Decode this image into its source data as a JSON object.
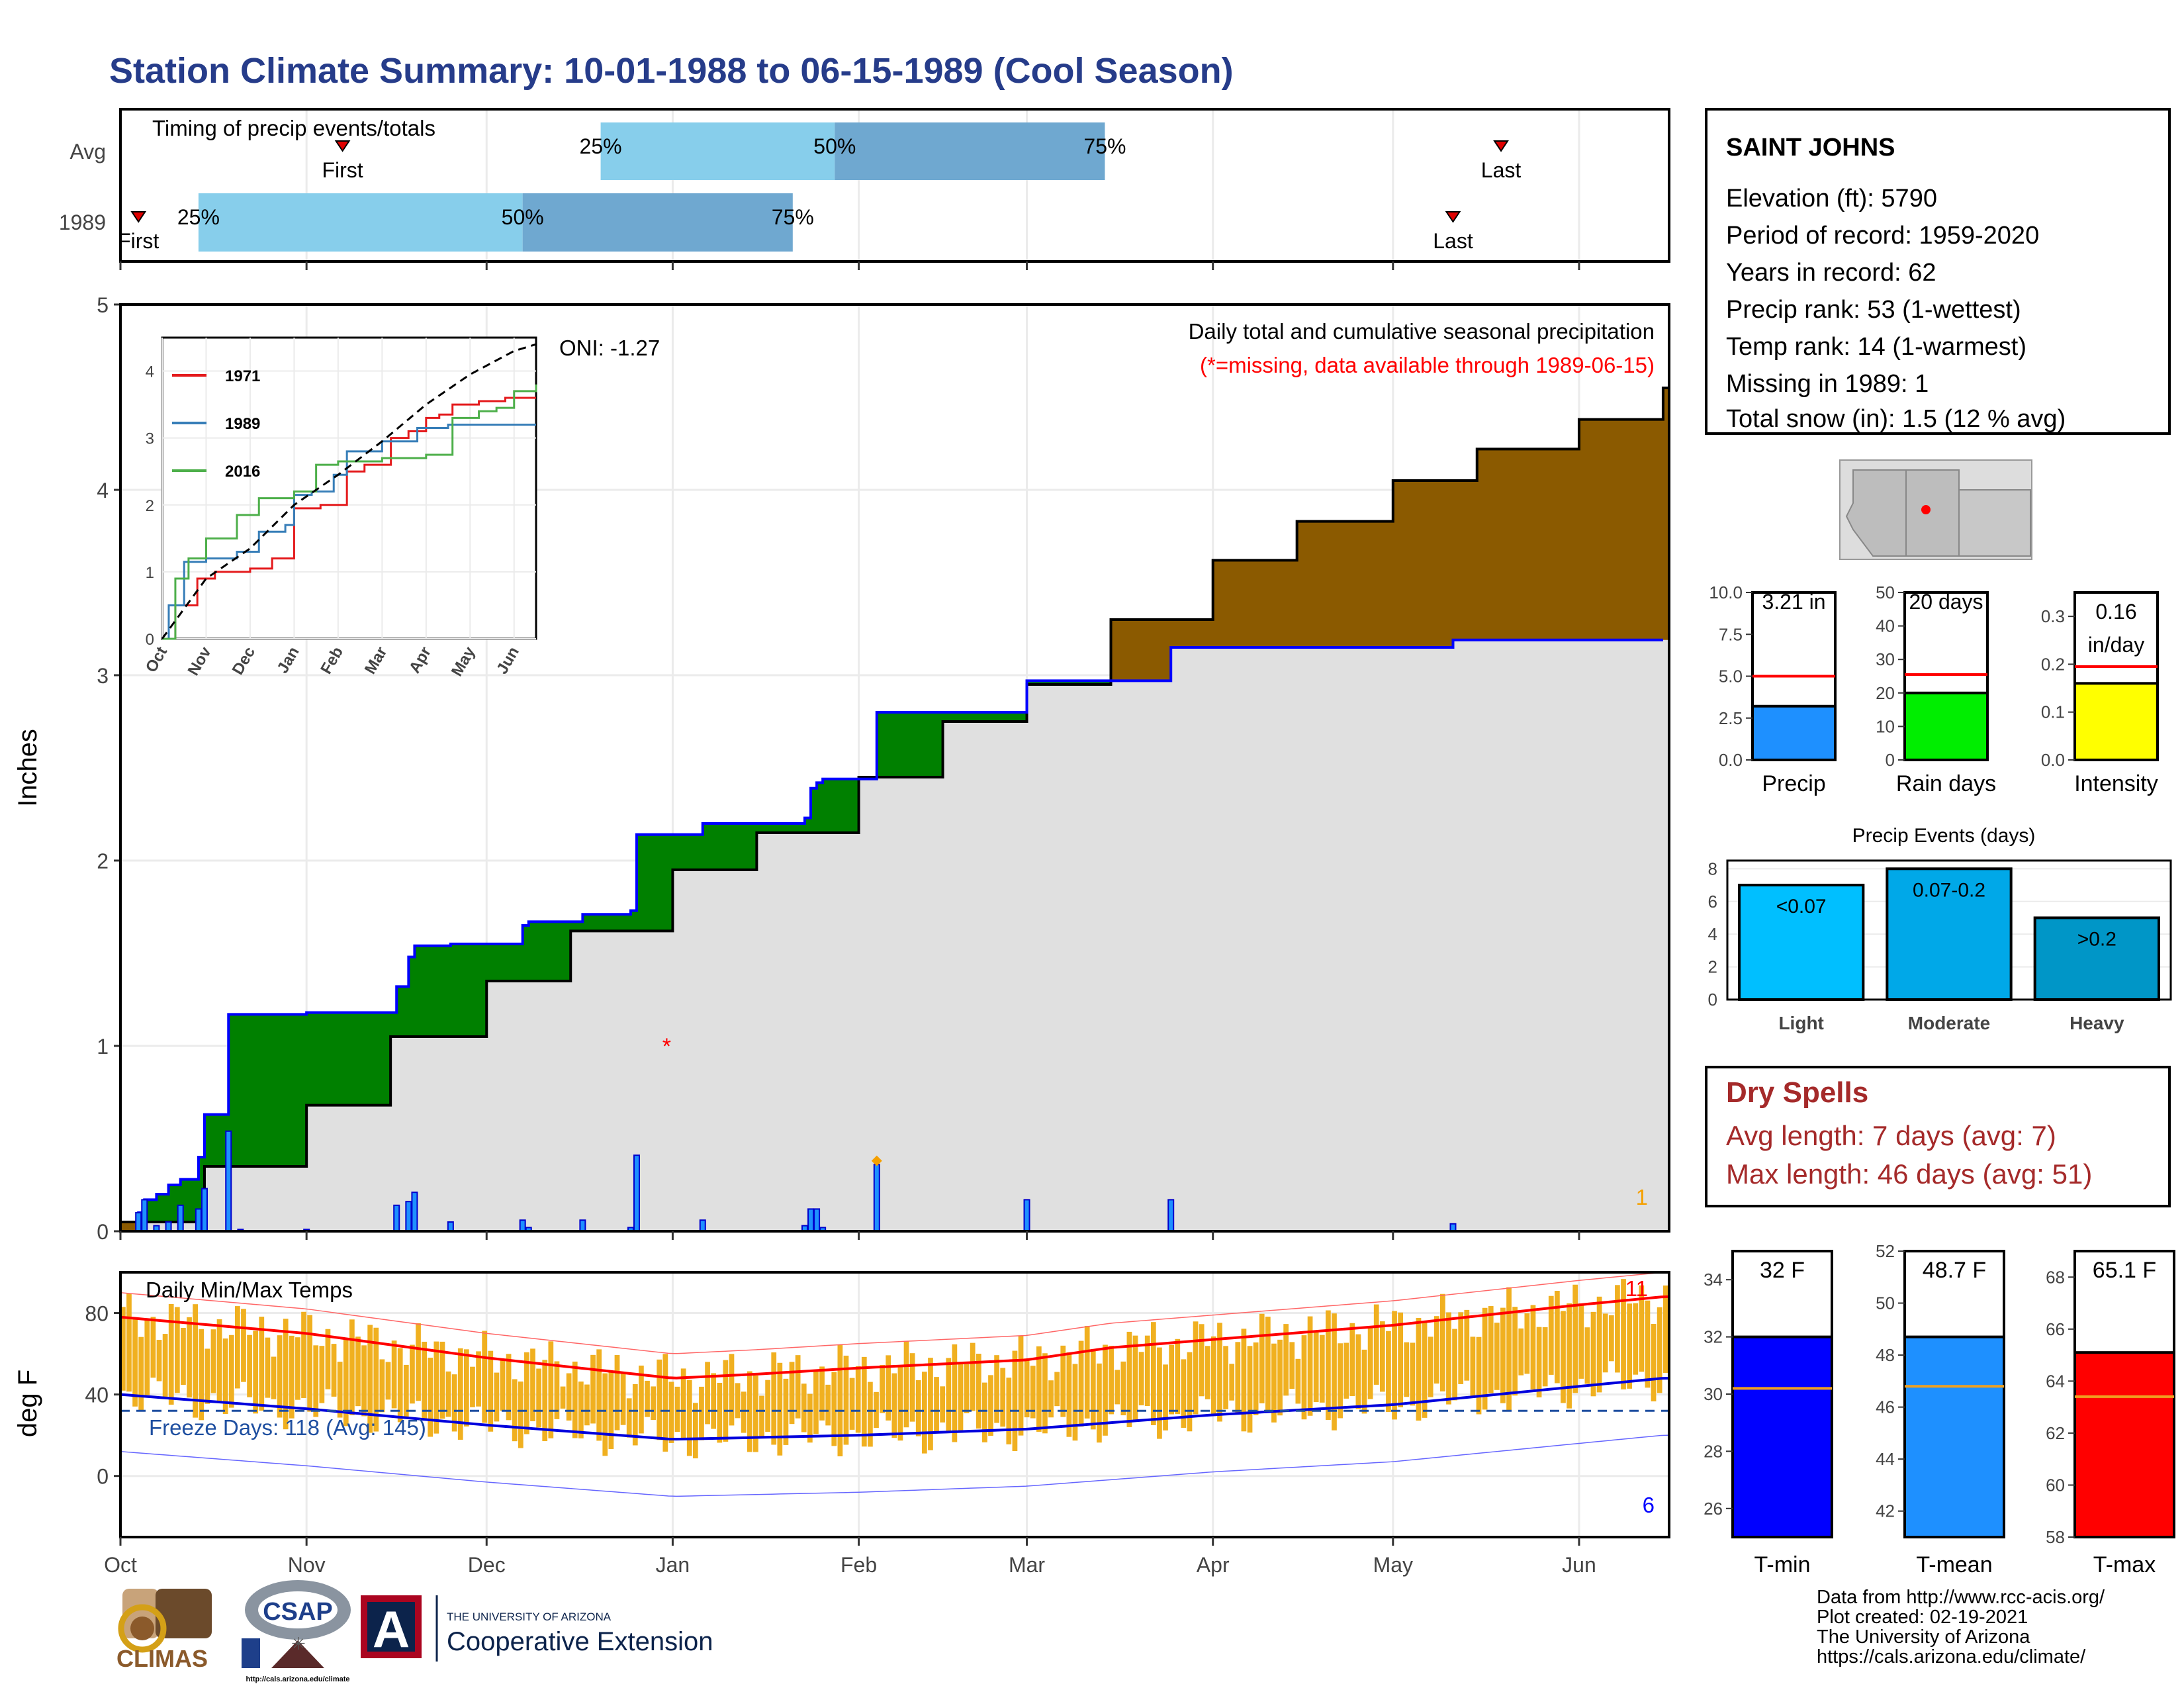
{
  "title": "Station Climate Summary: 10-01-1988 to 06-15-1989 (Cool Season)",
  "timing": {
    "title": "Timing of precip events/totals",
    "rows": [
      {
        "label": "Avg",
        "first_date": "1988-11-07",
        "last_date": "1989-05-19",
        "q25_date": "1988-12-20",
        "q50_date": "1989-01-28",
        "q75_date": "1989-03-14"
      },
      {
        "label": "1989",
        "first_date": "1988-10-04",
        "last_date": "1989-05-11",
        "q25_date": "1988-10-14",
        "q50_date": "1988-12-07",
        "q75_date": "1989-01-21"
      }
    ],
    "first_label": "First",
    "last_label": "Last",
    "q_labels": [
      "25%",
      "50%",
      "75%"
    ]
  },
  "precip_chart": {
    "ylabel": "Inches",
    "legend_title": "Daily total and cumulative seasonal precipitation",
    "missing_note": "(*=missing, data available through 1989-06-15)",
    "oni": "ONI: -1.27",
    "missing_marker_date": "1988-12-31",
    "missing_marker_value": 1.0,
    "right_count_label": "1",
    "yticks": [
      "0",
      "1",
      "2",
      "3",
      "4",
      "5"
    ],
    "ylim": [
      0,
      5
    ],
    "daily_label_color": "#0000ff",
    "inset": {
      "series": [
        {
          "name": "1971",
          "color": "#e41a1c"
        },
        {
          "name": "1989",
          "color": "#377eb8"
        },
        {
          "name": "2016",
          "color": "#4daf4a"
        }
      ],
      "yticks": [
        "0",
        "1",
        "2",
        "3",
        "4"
      ],
      "xticks": [
        "Oct",
        "Nov",
        "Dec",
        "Jan",
        "Feb",
        "Mar",
        "Apr",
        "May",
        "Jun"
      ]
    }
  },
  "temp_chart": {
    "title": "Daily Min/Max Temps",
    "ylabel": "deg F",
    "freeze_label": "Freeze Days: 118 (Avg: 145)",
    "freeze_line_value": 32,
    "top_count": "11",
    "bottom_count": "6",
    "yticks": [
      "0",
      "40",
      "80"
    ],
    "ylim": [
      -30,
      100
    ]
  },
  "x_axis_months": [
    "Oct",
    "Nov",
    "Dec",
    "Jan",
    "Feb",
    "Mar",
    "Apr",
    "May",
    "Jun"
  ],
  "station": {
    "name": "SAINT JOHNS",
    "lines": [
      "Elevation (ft): 5790",
      "Period of record: 1959-2020",
      "Years in record: 62",
      "Precip rank: 53 (1-wettest)",
      "Temp rank: 14 (1-warmest)",
      "Missing in 1989: 1",
      "Total snow (in): 1.5 (12 % avg)"
    ]
  },
  "summary_bars": [
    {
      "label": "Precip",
      "value": 3.21,
      "avg": 5.0,
      "value_text": "3.21 in",
      "ymax": 10.0,
      "yticks": [
        "0.0",
        "2.5",
        "5.0",
        "7.5",
        "10.0"
      ],
      "color": "#1e90ff"
    },
    {
      "label": "Rain days",
      "value": 20,
      "avg": 25.5,
      "value_text": "20 days",
      "ymax": 50,
      "yticks": [
        "0",
        "10",
        "20",
        "30",
        "40",
        "50"
      ],
      "color": "#00ee00"
    },
    {
      "label": "Intensity",
      "value": 0.16,
      "avg": 0.195,
      "value_text": "0.16\nin/day",
      "ymax": 0.35,
      "yticks": [
        "0.0",
        "0.1",
        "0.2",
        "0.3"
      ],
      "color": "#ffff00"
    }
  ],
  "events_chart": {
    "title": "Precip Events (days)",
    "yticks": [
      "0",
      "2",
      "4",
      "6",
      "8"
    ],
    "bars": [
      {
        "category": "Light",
        "label": "<0.07",
        "value": 7,
        "color": "#00bfff"
      },
      {
        "category": "Moderate",
        "label": "0.07-0.2",
        "value": 8,
        "color": "#00a8e8"
      },
      {
        "category": "Heavy",
        "label": ">0.2",
        "value": 5,
        "color": "#0096c7"
      }
    ]
  },
  "dry_spells": {
    "title": "Dry Spells",
    "avg_line": "Avg length: 7 days (avg: 7)",
    "max_line": "Max length: 46 days (avg: 51)"
  },
  "temp_bars": [
    {
      "label": "T-min",
      "value": 32,
      "avg": 30.2,
      "value_text": "32 F",
      "ylim": [
        25,
        35
      ],
      "yticks": [
        "26",
        "28",
        "30",
        "32",
        "34"
      ],
      "color": "#0000ff"
    },
    {
      "label": "T-mean",
      "value": 48.7,
      "avg": 46.8,
      "value_text": "48.7 F",
      "ylim": [
        41,
        52
      ],
      "yticks": [
        "42",
        "44",
        "46",
        "48",
        "50",
        "52"
      ],
      "color": "#1e90ff"
    },
    {
      "label": "T-max",
      "value": 65.1,
      "avg": 63.4,
      "value_text": "65.1 F",
      "ylim": [
        58,
        69
      ],
      "yticks": [
        "58",
        "60",
        "62",
        "64",
        "66",
        "68"
      ],
      "color": "#ff0000"
    }
  ],
  "footer": {
    "lines": [
      "Data from http://www.rcc-acis.org/",
      "Plot created: 02-19-2021",
      "The University of Arizona",
      "https://cals.arizona.edu/climate/"
    ],
    "logos": {
      "climas": "CLIMAS",
      "csap": "CSAP",
      "csap_url": "http://cals.arizona.edu/climate",
      "ua_small": "THE UNIVERSITY OF ARIZONA",
      "ua_big": "Cooperative Extension"
    }
  },
  "chart_data": [
    {
      "type": "area",
      "title": "Daily total and cumulative seasonal precipitation",
      "ylabel": "Inches",
      "ylim": [
        0,
        5
      ],
      "x_range": [
        "1988-10-01",
        "1989-06-15"
      ],
      "series": [
        {
          "name": "cumulative average",
          "style": "step",
          "points": [
            [
              "1988-10-01",
              0.05
            ],
            [
              "1988-10-15",
              0.35
            ],
            [
              "1988-11-01",
              0.68
            ],
            [
              "1988-11-15",
              1.05
            ],
            [
              "1988-12-01",
              1.35
            ],
            [
              "1988-12-15",
              1.62
            ],
            [
              "1989-01-01",
              1.95
            ],
            [
              "1989-01-15",
              2.15
            ],
            [
              "1989-02-01",
              2.45
            ],
            [
              "1989-02-15",
              2.75
            ],
            [
              "1989-03-01",
              2.95
            ],
            [
              "1989-03-15",
              3.3
            ],
            [
              "1989-04-01",
              3.62
            ],
            [
              "1989-04-15",
              3.83
            ],
            [
              "1989-05-01",
              4.05
            ],
            [
              "1989-05-15",
              4.22
            ],
            [
              "1989-06-01",
              4.38
            ],
            [
              "1989-06-15",
              4.55
            ]
          ]
        },
        {
          "name": "cumulative 1989",
          "style": "step",
          "points": [
            [
              "1988-10-01",
              0.0
            ],
            [
              "1988-10-04",
              0.1
            ],
            [
              "1988-10-05",
              0.17
            ],
            [
              "1988-10-07",
              0.2
            ],
            [
              "1988-10-09",
              0.25
            ],
            [
              "1988-10-11",
              0.28
            ],
            [
              "1988-10-14",
              0.4
            ],
            [
              "1988-10-15",
              0.63
            ],
            [
              "1988-10-19",
              1.17
            ],
            [
              "1988-10-21",
              1.17
            ],
            [
              "1988-11-01",
              1.18
            ],
            [
              "1988-11-15",
              1.18
            ],
            [
              "1988-11-16",
              1.32
            ],
            [
              "1988-11-18",
              1.48
            ],
            [
              "1988-11-19",
              1.54
            ],
            [
              "1988-11-25",
              1.55
            ],
            [
              "1988-12-07",
              1.65
            ],
            [
              "1988-12-08",
              1.67
            ],
            [
              "1988-12-15",
              1.67
            ],
            [
              "1988-12-17",
              1.71
            ],
            [
              "1988-12-25",
              1.73
            ],
            [
              "1988-12-26",
              2.14
            ],
            [
              "1988-12-31",
              2.14
            ],
            [
              "1989-01-06",
              2.2
            ],
            [
              "1989-01-20",
              2.2
            ],
            [
              "1989-01-23",
              2.23
            ],
            [
              "1989-01-24",
              2.39
            ],
            [
              "1989-01-25",
              2.42
            ],
            [
              "1989-01-26",
              2.44
            ],
            [
              "1989-02-04",
              2.8
            ],
            [
              "1989-02-28",
              2.8
            ],
            [
              "1989-03-01",
              2.97
            ],
            [
              "1989-03-24",
              2.97
            ],
            [
              "1989-03-25",
              3.15
            ],
            [
              "1989-05-10",
              3.15
            ],
            [
              "1989-05-11",
              3.19
            ],
            [
              "1989-06-15",
              3.19
            ]
          ]
        },
        {
          "name": "daily 1989",
          "style": "bar",
          "points": [
            [
              "1988-10-04",
              0.1
            ],
            [
              "1988-10-05",
              0.17
            ],
            [
              "1988-10-07",
              0.03
            ],
            [
              "1988-10-09",
              0.05
            ],
            [
              "1988-10-11",
              0.14
            ],
            [
              "1988-10-14",
              0.12
            ],
            [
              "1988-10-15",
              0.23
            ],
            [
              "1988-10-19",
              0.54
            ],
            [
              "1988-10-21",
              0.01
            ],
            [
              "1988-11-01",
              0.01
            ],
            [
              "1988-11-16",
              0.14
            ],
            [
              "1988-11-18",
              0.16
            ],
            [
              "1988-11-19",
              0.21
            ],
            [
              "1988-11-25",
              0.05
            ],
            [
              "1988-12-07",
              0.06
            ],
            [
              "1988-12-08",
              0.02
            ],
            [
              "1988-12-17",
              0.06
            ],
            [
              "1988-12-25",
              0.02
            ],
            [
              "1988-12-26",
              0.41
            ],
            [
              "1989-01-06",
              0.06
            ],
            [
              "1989-01-23",
              0.03
            ],
            [
              "1989-01-24",
              0.12
            ],
            [
              "1989-01-25",
              0.12
            ],
            [
              "1989-01-26",
              0.02
            ],
            [
              "1989-02-04",
              0.36
            ],
            [
              "1989-03-01",
              0.17
            ],
            [
              "1989-03-25",
              0.17
            ],
            [
              "1989-05-11",
              0.04
            ]
          ]
        }
      ]
    },
    {
      "type": "line",
      "title": "",
      "x_range": [
        "Oct",
        "Jun"
      ],
      "ylim": [
        0,
        4.5
      ],
      "series": [
        {
          "name": "1971",
          "points": [
            [
              0,
              0
            ],
            [
              0.3,
              0.5
            ],
            [
              0.8,
              0.9
            ],
            [
              1.2,
              1.0
            ],
            [
              2.0,
              1.05
            ],
            [
              2.5,
              1.2
            ],
            [
              3.0,
              1.95
            ],
            [
              3.6,
              2.0
            ],
            [
              4.2,
              2.5
            ],
            [
              4.6,
              2.6
            ],
            [
              5.2,
              3.0
            ],
            [
              5.6,
              3.1
            ],
            [
              6.0,
              3.3
            ],
            [
              6.3,
              3.35
            ],
            [
              6.6,
              3.5
            ],
            [
              7.2,
              3.55
            ],
            [
              7.8,
              3.6
            ],
            [
              8.5,
              3.6
            ]
          ]
        },
        {
          "name": "1989",
          "points": [
            [
              0,
              0
            ],
            [
              0.15,
              0.5
            ],
            [
              0.5,
              1.15
            ],
            [
              1.0,
              1.2
            ],
            [
              1.7,
              1.3
            ],
            [
              2.2,
              1.6
            ],
            [
              2.8,
              1.7
            ],
            [
              3.0,
              2.15
            ],
            [
              3.4,
              2.2
            ],
            [
              3.9,
              2.45
            ],
            [
              4.2,
              2.8
            ],
            [
              5.0,
              2.95
            ],
            [
              5.8,
              3.15
            ],
            [
              6.5,
              3.2
            ],
            [
              8.5,
              3.2
            ]
          ]
        },
        {
          "name": "2016",
          "points": [
            [
              0,
              0
            ],
            [
              0.3,
              0.9
            ],
            [
              0.6,
              1.2
            ],
            [
              1.0,
              1.5
            ],
            [
              1.7,
              1.85
            ],
            [
              2.2,
              2.1
            ],
            [
              3.0,
              2.2
            ],
            [
              3.5,
              2.6
            ],
            [
              4.0,
              2.65
            ],
            [
              5.0,
              2.7
            ],
            [
              6.0,
              2.75
            ],
            [
              6.6,
              3.3
            ],
            [
              7.2,
              3.4
            ],
            [
              7.6,
              3.45
            ],
            [
              8.0,
              3.7
            ],
            [
              8.5,
              3.8
            ]
          ]
        },
        {
          "name": "average",
          "style": "dashed",
          "points": [
            [
              0,
              0
            ],
            [
              1.0,
              0.9
            ],
            [
              2.0,
              1.35
            ],
            [
              3.0,
              2.0
            ],
            [
              4.0,
              2.45
            ],
            [
              5.0,
              2.95
            ],
            [
              6.0,
              3.5
            ],
            [
              7.0,
              3.95
            ],
            [
              8.0,
              4.3
            ],
            [
              8.5,
              4.4
            ]
          ]
        }
      ]
    },
    {
      "type": "bar",
      "title": "Daily Min/Max Temps",
      "ylabel": "deg F",
      "ylim": [
        -30,
        100
      ],
      "series": [
        {
          "name": "avg max",
          "points": [
            [
              "1988-10-01",
              78
            ],
            [
              "1988-11-01",
              70
            ],
            [
              "1988-12-01",
              58
            ],
            [
              "1989-01-01",
              48
            ],
            [
              "1989-01-15",
              50
            ],
            [
              "1989-02-01",
              53
            ],
            [
              "1989-03-01",
              57
            ],
            [
              "1989-03-15",
              63
            ],
            [
              "1989-04-01",
              67
            ],
            [
              "1989-05-01",
              74
            ],
            [
              "1989-06-01",
              84
            ],
            [
              "1989-06-15",
              88
            ]
          ]
        },
        {
          "name": "avg min",
          "points": [
            [
              "1988-10-01",
              40
            ],
            [
              "1988-11-01",
              33
            ],
            [
              "1988-12-01",
              25
            ],
            [
              "1989-01-01",
              18
            ],
            [
              "1989-02-01",
              20
            ],
            [
              "1989-03-01",
              23
            ],
            [
              "1989-04-01",
              30
            ],
            [
              "1989-05-01",
              35
            ],
            [
              "1989-06-01",
              44
            ],
            [
              "1989-06-15",
              48
            ]
          ]
        }
      ]
    },
    {
      "type": "bar",
      "title": "Precip Events (days)",
      "categories": [
        "Light",
        "Moderate",
        "Heavy"
      ],
      "values": [
        7,
        8,
        5
      ],
      "bar_labels": [
        "<0.07",
        "0.07-0.2",
        ">0.2"
      ]
    },
    {
      "type": "bar",
      "categories": [
        "Precip",
        "Rain days",
        "Intensity"
      ],
      "values": [
        3.21,
        20,
        0.16
      ],
      "averages": [
        5.0,
        25.5,
        0.195
      ]
    },
    {
      "type": "bar",
      "categories": [
        "T-min",
        "T-mean",
        "T-max"
      ],
      "values": [
        32,
        48.7,
        65.1
      ],
      "averages": [
        30.2,
        46.8,
        63.4
      ]
    }
  ]
}
